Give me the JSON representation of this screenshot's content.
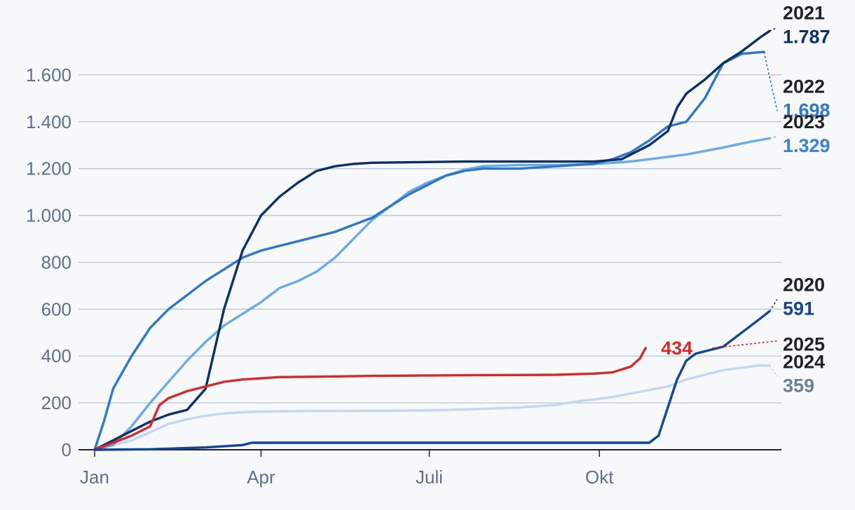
{
  "chart_data": {
    "type": "line",
    "xlabel": "",
    "ylabel": "",
    "ylim": [
      0,
      1800
    ],
    "grid": true,
    "x_ticks": [
      {
        "label": "Jan",
        "day": 0
      },
      {
        "label": "Apr",
        "day": 90
      },
      {
        "label": "Juli",
        "day": 181
      },
      {
        "label": "Okt",
        "day": 273
      }
    ],
    "y_ticks": [
      {
        "value": 0,
        "label": "0"
      },
      {
        "value": 200,
        "label": "200"
      },
      {
        "value": 400,
        "label": "400"
      },
      {
        "value": 600,
        "label": "600"
      },
      {
        "value": 800,
        "label": "800"
      },
      {
        "value": 1000,
        "label": "1.000"
      },
      {
        "value": 1200,
        "label": "1.200"
      },
      {
        "value": 1400,
        "label": "1.400"
      },
      {
        "value": 1600,
        "label": "1.600"
      }
    ],
    "series": [
      {
        "name": "2024",
        "value_label": "359",
        "color": "#c3d7f3",
        "value_color": "#6b7f96",
        "label_value": 300,
        "points": [
          [
            0,
            0
          ],
          [
            10,
            20
          ],
          [
            20,
            40
          ],
          [
            30,
            75
          ],
          [
            40,
            110
          ],
          [
            50,
            130
          ],
          [
            60,
            145
          ],
          [
            70,
            155
          ],
          [
            80,
            160
          ],
          [
            90,
            163
          ],
          [
            110,
            165
          ],
          [
            150,
            166
          ],
          [
            180,
            168
          ],
          [
            200,
            172
          ],
          [
            230,
            180
          ],
          [
            250,
            192
          ],
          [
            260,
            205
          ],
          [
            270,
            215
          ],
          [
            280,
            225
          ],
          [
            290,
            240
          ],
          [
            300,
            255
          ],
          [
            310,
            270
          ],
          [
            320,
            300
          ],
          [
            330,
            320
          ],
          [
            340,
            340
          ],
          [
            350,
            350
          ],
          [
            360,
            360
          ],
          [
            365,
            359
          ]
        ]
      },
      {
        "name": "2023",
        "value_label": "1.329",
        "color": "#6aaaea",
        "value_color": "#3a82d4",
        "label_value": 1325,
        "points": [
          [
            0,
            0
          ],
          [
            10,
            20
          ],
          [
            20,
            100
          ],
          [
            30,
            200
          ],
          [
            40,
            290
          ],
          [
            50,
            380
          ],
          [
            60,
            460
          ],
          [
            70,
            530
          ],
          [
            80,
            580
          ],
          [
            90,
            630
          ],
          [
            100,
            690
          ],
          [
            110,
            720
          ],
          [
            120,
            760
          ],
          [
            130,
            820
          ],
          [
            140,
            900
          ],
          [
            150,
            980
          ],
          [
            160,
            1040
          ],
          [
            170,
            1100
          ],
          [
            180,
            1140
          ],
          [
            190,
            1170
          ],
          [
            200,
            1195
          ],
          [
            210,
            1210
          ],
          [
            230,
            1215
          ],
          [
            250,
            1215
          ],
          [
            270,
            1220
          ],
          [
            290,
            1230
          ],
          [
            300,
            1240
          ],
          [
            320,
            1260
          ],
          [
            340,
            1290
          ],
          [
            355,
            1315
          ],
          [
            365,
            1329
          ]
        ]
      },
      {
        "name": "2022",
        "value_label": "1.698",
        "color": "#2d76ca",
        "value_color": "#2d76ca",
        "label_value": 1560,
        "points": [
          [
            0,
            0
          ],
          [
            5,
            120
          ],
          [
            10,
            260
          ],
          [
            20,
            400
          ],
          [
            30,
            520
          ],
          [
            40,
            600
          ],
          [
            50,
            660
          ],
          [
            60,
            720
          ],
          [
            70,
            770
          ],
          [
            80,
            820
          ],
          [
            90,
            850
          ],
          [
            100,
            870
          ],
          [
            110,
            890
          ],
          [
            120,
            910
          ],
          [
            130,
            930
          ],
          [
            140,
            960
          ],
          [
            150,
            990
          ],
          [
            160,
            1040
          ],
          [
            170,
            1090
          ],
          [
            180,
            1130
          ],
          [
            190,
            1170
          ],
          [
            200,
            1190
          ],
          [
            210,
            1200
          ],
          [
            230,
            1200
          ],
          [
            260,
            1215
          ],
          [
            270,
            1220
          ],
          [
            280,
            1240
          ],
          [
            290,
            1270
          ],
          [
            300,
            1320
          ],
          [
            310,
            1380
          ],
          [
            320,
            1400
          ],
          [
            330,
            1500
          ],
          [
            340,
            1650
          ],
          [
            350,
            1690
          ],
          [
            362,
            1698
          ]
        ]
      },
      {
        "name": "2021",
        "value_label": "1.787",
        "color": "#0d2f66",
        "value_color": "#0d2f66",
        "label_value": 1790,
        "points": [
          [
            0,
            0
          ],
          [
            10,
            40
          ],
          [
            20,
            80
          ],
          [
            30,
            120
          ],
          [
            40,
            150
          ],
          [
            50,
            170
          ],
          [
            60,
            260
          ],
          [
            70,
            600
          ],
          [
            80,
            850
          ],
          [
            90,
            1000
          ],
          [
            100,
            1080
          ],
          [
            110,
            1140
          ],
          [
            120,
            1190
          ],
          [
            130,
            1210
          ],
          [
            140,
            1220
          ],
          [
            150,
            1225
          ],
          [
            200,
            1230
          ],
          [
            270,
            1230
          ],
          [
            285,
            1240
          ],
          [
            290,
            1260
          ],
          [
            300,
            1300
          ],
          [
            310,
            1360
          ],
          [
            315,
            1460
          ],
          [
            320,
            1520
          ],
          [
            330,
            1580
          ],
          [
            340,
            1650
          ],
          [
            350,
            1700
          ],
          [
            360,
            1760
          ],
          [
            365,
            1787
          ]
        ]
      },
      {
        "name": "2025",
        "value_label": "434",
        "color": "#d42a2a",
        "value_color": "#d42a2a",
        "label_value": 445,
        "label_in_line": true,
        "points": [
          [
            0,
            0
          ],
          [
            10,
            30
          ],
          [
            20,
            60
          ],
          [
            30,
            100
          ],
          [
            35,
            190
          ],
          [
            40,
            220
          ],
          [
            50,
            250
          ],
          [
            60,
            270
          ],
          [
            70,
            290
          ],
          [
            80,
            300
          ],
          [
            90,
            305
          ],
          [
            100,
            310
          ],
          [
            120,
            312
          ],
          [
            150,
            315
          ],
          [
            200,
            318
          ],
          [
            250,
            320
          ],
          [
            270,
            325
          ],
          [
            280,
            330
          ],
          [
            290,
            355
          ],
          [
            295,
            390
          ],
          [
            298,
            434
          ]
        ]
      },
      {
        "name": "2020",
        "value_label": "591",
        "color": "#12449a",
        "value_color": "#12449a",
        "label_value": 630,
        "points": [
          [
            0,
            0
          ],
          [
            30,
            2
          ],
          [
            60,
            10
          ],
          [
            80,
            20
          ],
          [
            85,
            30
          ],
          [
            100,
            30
          ],
          [
            200,
            30
          ],
          [
            280,
            30
          ],
          [
            300,
            30
          ],
          [
            305,
            60
          ],
          [
            310,
            180
          ],
          [
            315,
            300
          ],
          [
            320,
            380
          ],
          [
            325,
            410
          ],
          [
            330,
            420
          ],
          [
            340,
            440
          ],
          [
            350,
            500
          ],
          [
            360,
            560
          ],
          [
            365,
            591
          ]
        ]
      }
    ],
    "year_labels": [
      {
        "series": "2021",
        "text": "2021"
      },
      {
        "series": "2022",
        "text": "2022"
      },
      {
        "series": "2023",
        "text": "2023"
      },
      {
        "series": "2020",
        "text": "2020"
      },
      {
        "series": "2025",
        "text": "2025"
      },
      {
        "series": "2024",
        "text": "2024"
      }
    ]
  }
}
